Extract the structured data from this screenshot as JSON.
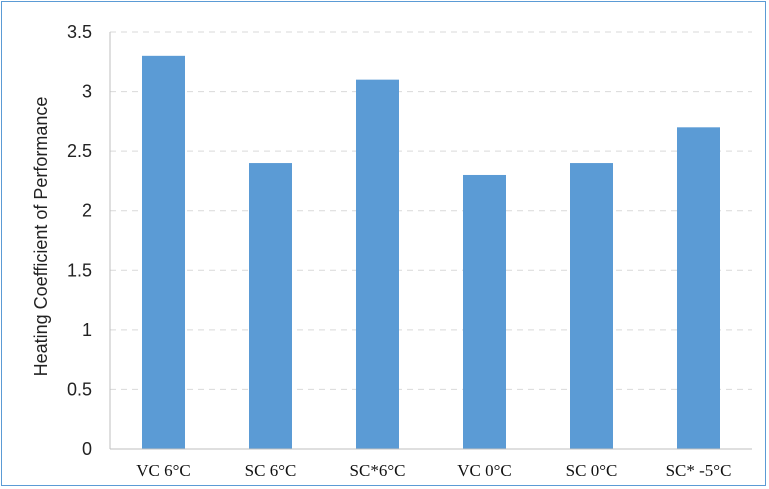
{
  "chart_data": {
    "type": "bar",
    "title": "",
    "xlabel": "",
    "ylabel": "Heating Coefficient of Performance",
    "categories": [
      "VC 6°C",
      "SC 6°C",
      "SC*6°C",
      "VC 0°C",
      "SC 0°C",
      "SC* -5°C"
    ],
    "values": [
      3.3,
      2.4,
      3.1,
      2.3,
      2.4,
      2.7
    ],
    "ylim": [
      0,
      3.5
    ],
    "yticks": [
      "0",
      "0.5",
      "1",
      "1.5",
      "2",
      "2.5",
      "3",
      "3.5"
    ],
    "grid": true,
    "legend": "none",
    "colors": {
      "bar": "#5b9bd5",
      "grid": "#d9d9d9",
      "axis": "#bfbfbf",
      "border": "#5b9bd5"
    }
  }
}
